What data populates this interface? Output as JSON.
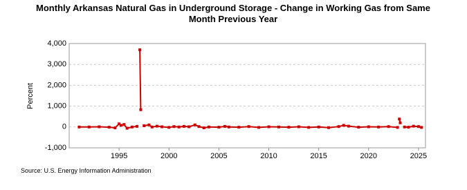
{
  "chart_data": {
    "type": "line",
    "title": "Monthly Arkansas Natural Gas in Underground Storage - Change in Working Gas from Same Month Previous Year",
    "y_label": "Percent",
    "source": "Source: U.S. Energy Information Administration",
    "x": [
      1991,
      1992,
      1993,
      1994,
      1994.6,
      1995,
      1995.2,
      1995.5,
      1995.8,
      1996.3,
      1996.8,
      1997.0,
      1997.08,
      1997.17,
      1997.25,
      1997.5,
      1998,
      1998.3,
      1998.8,
      1999.3,
      2000,
      2000.5,
      2001,
      2001.5,
      2002,
      2002.6,
      2003,
      2003.5,
      2004,
      2005,
      2005.6,
      2006,
      2007,
      2008,
      2009,
      2010,
      2011,
      2012,
      2013,
      2014,
      2015,
      2016,
      2017,
      2017.5,
      2018,
      2019,
      2020,
      2021,
      2022,
      2022.9,
      2023.0,
      2023.08,
      2023.17,
      2023.3,
      2023.6,
      2024,
      2024.5,
      2025,
      2025.3
    ],
    "values": [
      0,
      0,
      10,
      -10,
      -40,
      150,
      80,
      120,
      -60,
      0,
      30,
      null,
      3700,
      830,
      null,
      60,
      100,
      0,
      40,
      10,
      -20,
      20,
      0,
      30,
      10,
      100,
      20,
      -40,
      0,
      -10,
      30,
      0,
      -10,
      20,
      -20,
      10,
      0,
      -10,
      10,
      -20,
      0,
      -30,
      20,
      80,
      40,
      -10,
      10,
      0,
      20,
      -20,
      null,
      380,
      200,
      null,
      0,
      -10,
      40,
      20,
      -20
    ],
    "color": "#cc0000",
    "xlim": [
      1990,
      2025.7
    ],
    "xticks": [
      1995,
      2000,
      2005,
      2010,
      2015,
      2020,
      2025
    ],
    "ylim": [
      -1000,
      4000
    ],
    "yticks": [
      {
        "value": -1000,
        "label": "-1,000"
      },
      0,
      {
        "value": 1000,
        "label": "1,000"
      },
      {
        "value": 2000,
        "label": "2,000"
      },
      {
        "value": 3000,
        "label": "3,000"
      },
      {
        "value": 4000,
        "label": "4,000"
      }
    ],
    "grid": true
  }
}
